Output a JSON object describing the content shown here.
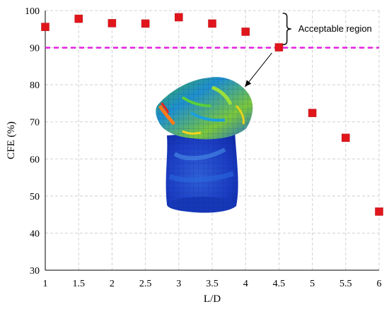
{
  "chart_data": {
    "type": "scatter",
    "xlabel": "L/D",
    "ylabel": "CFE (%)",
    "x_ticks": [
      "1",
      "1.5",
      "2",
      "2.5",
      "3",
      "3.5",
      "4",
      "4.5",
      "5",
      "5.5",
      "6"
    ],
    "y_ticks": [
      "30",
      "40",
      "50",
      "60",
      "70",
      "80",
      "90",
      "100"
    ],
    "xlim": [
      1,
      6
    ],
    "ylim": [
      30,
      100
    ],
    "grid": true,
    "series": [
      {
        "x": [
          1,
          1.5,
          2,
          2.5,
          3,
          3.5,
          4,
          4.5,
          5,
          5.5,
          6
        ],
        "y": [
          95.6,
          97.8,
          96.6,
          96.5,
          98.2,
          96.5,
          94.3,
          90.1,
          72.4,
          65.7,
          45.8
        ]
      }
    ],
    "threshold": {
      "y": 90,
      "color": "#e21ee2"
    },
    "marker_color": "#e0161c",
    "annotation": {
      "text": "Acceptable region"
    },
    "arrow_target_x": 4.5
  }
}
